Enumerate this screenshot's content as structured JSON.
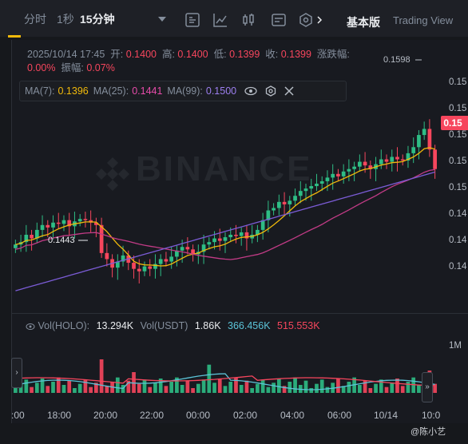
{
  "toolbar": {
    "intervals": [
      "分时",
      "1秒",
      "15分钟"
    ],
    "active_interval": "15分钟",
    "tab_basic": "基本版",
    "tab_tradingview": "Trading View"
  },
  "ohlc": {
    "datetime": "2025/10/14 17:45",
    "open_label": "开:",
    "open": "0.1400",
    "high_label": "高:",
    "high": "0.1400",
    "low_label": "低:",
    "low": "0.1399",
    "close_label": "收:",
    "close": "0.1399",
    "change_label": "涨跌幅:",
    "change": "0.00%",
    "amp_label": "振幅:",
    "amp": "0.07%"
  },
  "ma": {
    "ma7_label": "MA(7):",
    "ma7": "0.1396",
    "ma25_label": "MA(25):",
    "ma25": "0.1441",
    "ma99_label": "MA(99):",
    "ma99": "0.1500"
  },
  "volume": {
    "vol_holo_label": "Vol(HOLO):",
    "vol_holo": "13.294K",
    "vol_usdt_label": "Vol(USDT)",
    "vol_usdt": "1.86K",
    "ma_a": "366.456K",
    "ma_b": "515.553K",
    "axis_label": "1M"
  },
  "price_axis": [
    "0.15",
    "0.15",
    "0.15",
    "0.15",
    "0.15",
    "0.14",
    "0.14",
    "0.14"
  ],
  "current_price": "0.15",
  "low_marker": "0.1443",
  "high_marker": "0.1598",
  "time_axis": [
    ":00",
    "18:00",
    "20:00",
    "22:00",
    "00:00",
    "02:00",
    "04:00",
    "06:00",
    "10/14",
    "10:0"
  ],
  "watermark": "BINANCE",
  "footer": "@陈小艺",
  "colors": {
    "up": "#2ebd85",
    "down": "#f6465d",
    "ma7": "#f0b90b",
    "ma25": "#c23b86",
    "ma99": "#7b5cd6",
    "accent": "#f0b90b"
  },
  "chart_data": {
    "type": "candlestick",
    "candles_close_approx": [
      0.145,
      0.1452,
      0.1458,
      0.1455,
      0.1462,
      0.1466,
      0.1464,
      0.1468,
      0.1467,
      0.147,
      0.1465,
      0.1469,
      0.1471,
      0.147,
      0.1468,
      0.1466,
      0.1443,
      0.1438,
      0.1431,
      0.1436,
      0.1441,
      0.1435,
      0.143,
      0.1428,
      0.1432,
      0.143,
      0.1434,
      0.1438,
      0.1436,
      0.144,
      0.1445,
      0.1448,
      0.1446,
      0.1442,
      0.1444,
      0.145,
      0.1452,
      0.1455,
      0.1453,
      0.1456,
      0.1458,
      0.1457,
      0.146,
      0.1455,
      0.1458,
      0.1462,
      0.147,
      0.1478,
      0.148,
      0.1485,
      0.1483,
      0.1486,
      0.149,
      0.1494,
      0.1496,
      0.1498,
      0.15,
      0.1502,
      0.1505,
      0.1508,
      0.1506,
      0.151,
      0.1512,
      0.1514,
      0.1518,
      0.1515,
      0.1512,
      0.1516,
      0.152,
      0.1518,
      0.1522,
      0.152,
      0.1519,
      0.1525,
      0.153,
      0.154,
      0.1545,
      0.1528,
      0.1512
    ],
    "low_marker": 0.1443,
    "high_marker": 0.1598
  }
}
